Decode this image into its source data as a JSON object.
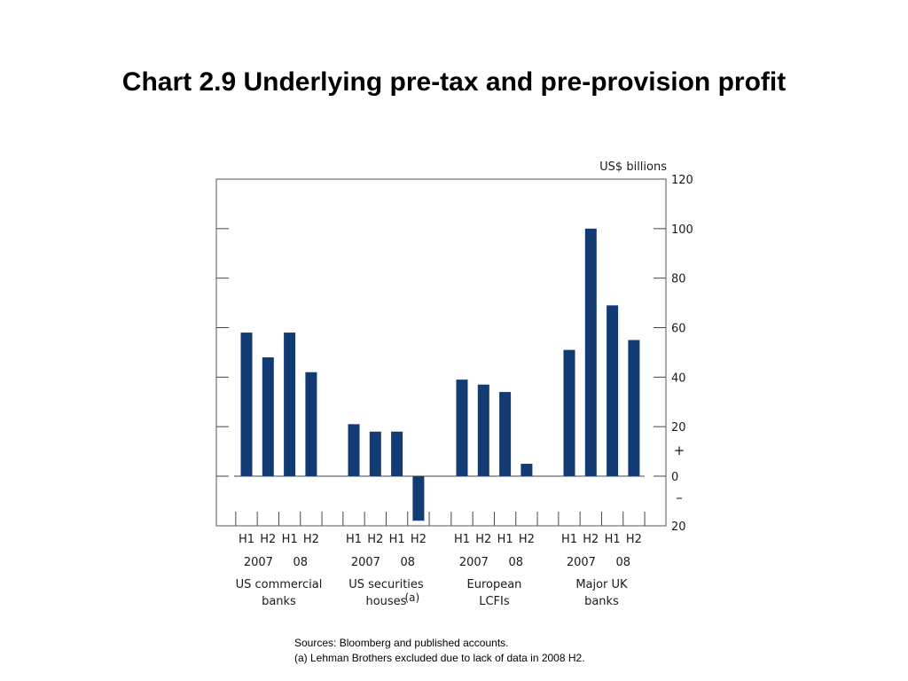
{
  "title": "Chart 2.9  Underlying pre-tax and pre-provision profit",
  "chart_data": {
    "type": "bar",
    "unit_label": "US$ billions",
    "ylim": [
      -20,
      120
    ],
    "y_ticks": [
      {
        "value": 120,
        "label": "120"
      },
      {
        "value": 100,
        "label": "100"
      },
      {
        "value": 80,
        "label": "80"
      },
      {
        "value": 60,
        "label": "60"
      },
      {
        "value": 40,
        "label": "40"
      },
      {
        "value": 20,
        "label": "20"
      },
      {
        "value": 0,
        "label": "0"
      },
      {
        "value": -20,
        "label": "20"
      }
    ],
    "sign_labels": {
      "plus": "+",
      "minus": "–"
    },
    "color": "#123a73",
    "grid": false,
    "groups": [
      {
        "name_lines": [
          "US commercial",
          "banks"
        ],
        "name_note": "",
        "periods": [
          "H1",
          "H2",
          "H1",
          "H2"
        ],
        "years": [
          "2007",
          "08"
        ],
        "values": [
          58,
          48,
          58,
          42
        ]
      },
      {
        "name_lines": [
          "US securities",
          "houses"
        ],
        "name_note": "(a)",
        "periods": [
          "H1",
          "H2",
          "H1",
          "H2"
        ],
        "years": [
          "2007",
          "08"
        ],
        "values": [
          21,
          18,
          18,
          -18
        ]
      },
      {
        "name_lines": [
          "European",
          "LCFIs"
        ],
        "name_note": "",
        "periods": [
          "H1",
          "H2",
          "H1",
          "H2"
        ],
        "years": [
          "2007",
          "08"
        ],
        "values": [
          39,
          37,
          34,
          5
        ]
      },
      {
        "name_lines": [
          "Major UK",
          "banks"
        ],
        "name_note": "",
        "periods": [
          "H1",
          "H2",
          "H1",
          "H2"
        ],
        "years": [
          "2007",
          "08"
        ],
        "values": [
          51,
          100,
          69,
          55
        ]
      }
    ]
  },
  "notes": {
    "sources": "Sources:  Bloomberg and published accounts.",
    "footnote": "(a) Lehman Brothers excluded due to lack of data in 2008 H2."
  }
}
